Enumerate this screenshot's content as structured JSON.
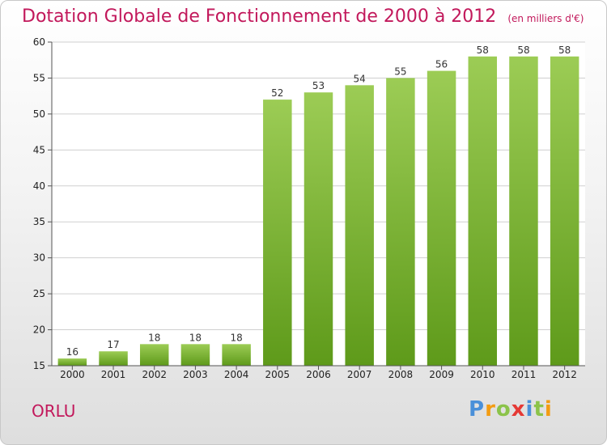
{
  "title": "Dotation Globale de Fonctionnement de 2000 à 2012",
  "unit": "(en milliers d'€)",
  "commune": "ORLU",
  "logo": {
    "letters": [
      "P",
      "r",
      "o",
      "x",
      "i",
      "t",
      "i"
    ],
    "colors": [
      "#4a90d9",
      "#f39c12",
      "#8bc34a",
      "#e53935",
      "#4a90d9",
      "#8bc34a",
      "#f39c12"
    ]
  },
  "chart_data": {
    "type": "bar",
    "title": "Dotation Globale de Fonctionnement de 2000 à 2012",
    "xlabel": "",
    "ylabel": "",
    "categories": [
      "2000",
      "2001",
      "2002",
      "2003",
      "2004",
      "2005",
      "2006",
      "2007",
      "2008",
      "2009",
      "2010",
      "2011",
      "2012"
    ],
    "values": [
      16,
      17,
      18,
      18,
      18,
      52,
      53,
      54,
      55,
      56,
      58,
      58,
      58
    ],
    "ylim": [
      15,
      60
    ],
    "yticks": [
      15,
      20,
      25,
      30,
      35,
      40,
      45,
      50,
      55,
      60
    ],
    "grid": true,
    "bar_color_top": "#9ccc55",
    "bar_color_bottom": "#5e9a1a"
  }
}
